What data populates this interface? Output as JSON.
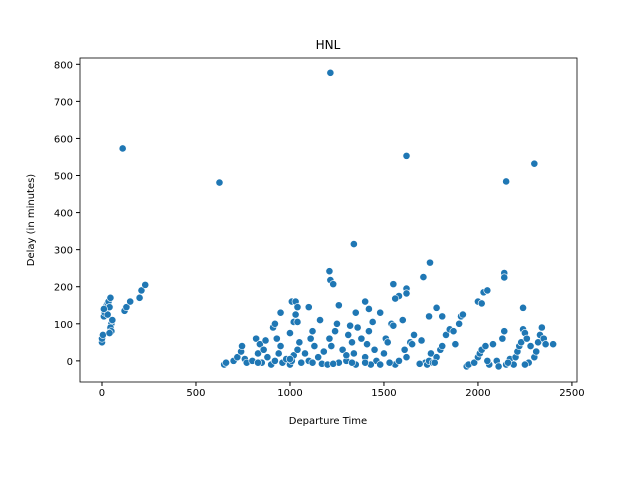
{
  "chart_data": {
    "type": "scatter",
    "title": "HNL",
    "x_label": "Departure Time",
    "y_label": "Delay (in minutes)",
    "color": "#1f77b4",
    "x": [
      110,
      625,
      1215,
      1620,
      2150,
      2300,
      1340,
      1745,
      1710,
      2140,
      2140,
      1210,
      1215,
      1230,
      1550,
      1620,
      1620,
      1580,
      1560,
      1010,
      1030,
      1040,
      1100,
      1030,
      1020,
      1040,
      2000,
      2020,
      2030,
      2050,
      2240,
      1780,
      1810,
      1260,
      1350,
      1400,
      1420,
      1000,
      950,
      1480,
      1740,
      0,
      0,
      5,
      10,
      15,
      20,
      25,
      30,
      35,
      40,
      45,
      50,
      55,
      45,
      50,
      40,
      30,
      10,
      120,
      130,
      150,
      200,
      210,
      230,
      650,
      660,
      700,
      720,
      740,
      745,
      760,
      770,
      800,
      820,
      830,
      840,
      850,
      860,
      870,
      880,
      900,
      910,
      920,
      930,
      940,
      950,
      960,
      980,
      1000,
      1010,
      1020,
      1040,
      1050,
      1060,
      1080,
      1100,
      1110,
      1120,
      1130,
      1150,
      1160,
      1170,
      1180,
      1200,
      1210,
      1220,
      1240,
      1250,
      1260,
      1280,
      1300,
      1310,
      1320,
      1330,
      1340,
      1350,
      1360,
      1380,
      1400,
      1410,
      1420,
      1440,
      1450,
      1460,
      1480,
      1500,
      1510,
      1520,
      1540,
      1550,
      1560,
      1580,
      1600,
      1610,
      1620,
      1640,
      1650,
      1660,
      1700,
      1720,
      1730,
      1740,
      1750,
      1760,
      1780,
      1800,
      1810,
      1830,
      1850,
      1870,
      1880,
      1900,
      1910,
      1920,
      1940,
      1950,
      1980,
      2000,
      2010,
      2020,
      2040,
      2060,
      2080,
      2100,
      2110,
      2130,
      2140,
      2150,
      2170,
      2190,
      2200,
      2210,
      2220,
      2230,
      2240,
      2250,
      2260,
      2270,
      2280,
      2300,
      2310,
      2320,
      2330,
      2340,
      2350,
      2360,
      2400,
      1120,
      1230,
      1330,
      1430,
      1530,
      1690,
      1770,
      2050,
      2160,
      2250,
      920,
      1000,
      830,
      1300,
      1400
    ],
    "values": [
      573,
      481,
      777,
      553,
      484,
      532,
      315,
      265,
      226,
      237,
      225,
      242,
      218,
      207,
      207,
      195,
      182,
      175,
      168,
      160,
      160,
      145,
      145,
      125,
      105,
      105,
      160,
      155,
      185,
      190,
      143,
      143,
      120,
      150,
      130,
      160,
      140,
      75,
      130,
      130,
      120,
      50,
      60,
      70,
      120,
      130,
      140,
      150,
      155,
      160,
      145,
      170,
      100,
      110,
      90,
      80,
      75,
      125,
      140,
      135,
      145,
      160,
      170,
      190,
      205,
      -10,
      -5,
      0,
      10,
      25,
      40,
      5,
      -5,
      0,
      60,
      20,
      45,
      -5,
      30,
      55,
      10,
      -10,
      90,
      100,
      60,
      20,
      40,
      -5,
      5,
      -10,
      0,
      15,
      30,
      50,
      -5,
      20,
      0,
      60,
      80,
      40,
      10,
      110,
      -8,
      25,
      -10,
      60,
      40,
      80,
      100,
      -5,
      30,
      0,
      70,
      95,
      50,
      20,
      -10,
      90,
      60,
      10,
      45,
      80,
      105,
      30,
      0,
      -10,
      20,
      60,
      50,
      100,
      95,
      -10,
      0,
      110,
      30,
      10,
      50,
      45,
      70,
      55,
      -5,
      -10,
      0,
      20,
      -5,
      10,
      30,
      40,
      70,
      85,
      80,
      45,
      100,
      120,
      125,
      -15,
      -10,
      -5,
      10,
      20,
      30,
      40,
      -10,
      45,
      0,
      -15,
      60,
      80,
      -10,
      5,
      -10,
      10,
      25,
      40,
      50,
      85,
      75,
      60,
      -5,
      40,
      10,
      25,
      50,
      70,
      90,
      60,
      45,
      45,
      -5,
      -8,
      -5,
      -10,
      -5,
      -8,
      -5,
      0,
      -5,
      -10,
      0,
      5,
      -5,
      15,
      -5
    ],
    "xlim": [
      -117,
      2527
    ],
    "ylim": [
      -57,
      817
    ],
    "xticks": [
      0,
      500,
      1000,
      1500,
      2000,
      2500
    ],
    "yticks": [
      0,
      100,
      200,
      300,
      400,
      500,
      600,
      700,
      800
    ]
  }
}
